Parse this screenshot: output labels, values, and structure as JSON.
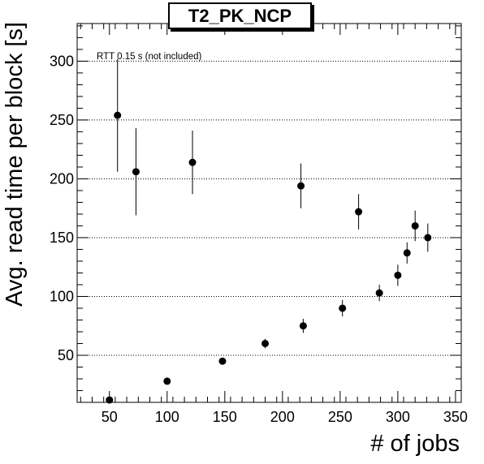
{
  "chart_data": {
    "type": "scatter",
    "title": "T2_PK_NCP",
    "xlabel": "# of jobs",
    "ylabel": "Avg. read time per block [s]",
    "annotation": "RTT 0.15 s (not included)",
    "xlim": [
      22,
      355
    ],
    "ylim": [
      10,
      332
    ],
    "xticks": [
      50,
      100,
      150,
      200,
      250,
      300,
      350
    ],
    "yticks": [
      50,
      100,
      150,
      200,
      250,
      300
    ],
    "grid": "y-dotted",
    "points": [
      {
        "x": 50,
        "y": 12,
        "err": 1
      },
      {
        "x": 57,
        "y": 254,
        "err": 48
      },
      {
        "x": 73,
        "y": 206,
        "err": 37
      },
      {
        "x": 100,
        "y": 28,
        "err": 1
      },
      {
        "x": 122,
        "y": 214,
        "err": 27
      },
      {
        "x": 148,
        "y": 45,
        "err": 2
      },
      {
        "x": 185,
        "y": 60,
        "err": 4
      },
      {
        "x": 216,
        "y": 194,
        "err": 19
      },
      {
        "x": 218,
        "y": 75,
        "err": 6
      },
      {
        "x": 252,
        "y": 90,
        "err": 7
      },
      {
        "x": 266,
        "y": 172,
        "err": 15
      },
      {
        "x": 284,
        "y": 103,
        "err": 7
      },
      {
        "x": 300,
        "y": 118,
        "err": 9
      },
      {
        "x": 308,
        "y": 137,
        "err": 9
      },
      {
        "x": 315,
        "y": 160,
        "err": 13
      },
      {
        "x": 326,
        "y": 150,
        "err": 12
      }
    ]
  }
}
